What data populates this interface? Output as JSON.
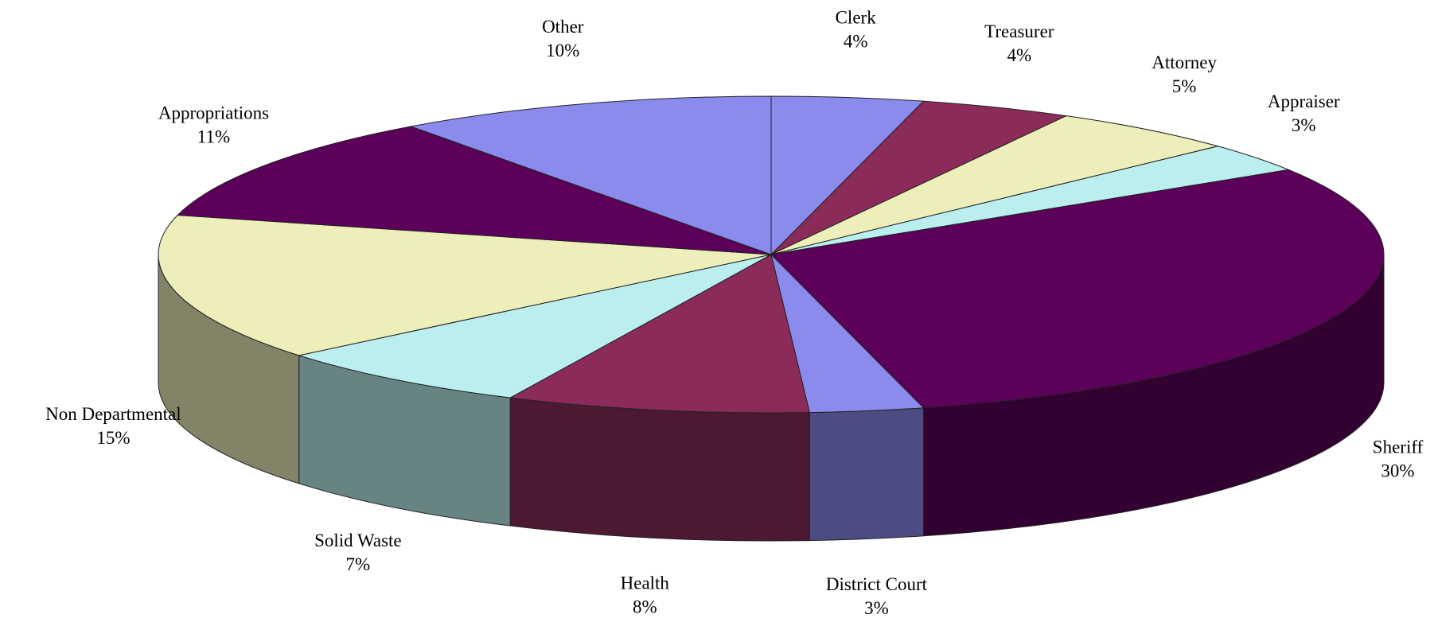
{
  "chart_data": {
    "type": "pie3d",
    "categories": [
      "Clerk",
      "Treasurer",
      "Attorney",
      "Appraiser",
      "Sheriff",
      "District Court",
      "Health",
      "Solid Waste",
      "Non Departmental",
      "Appropriations",
      "Other"
    ],
    "values": [
      4,
      4,
      5,
      3,
      30,
      3,
      8,
      7,
      15,
      11,
      10
    ],
    "value_labels": [
      "4%",
      "4%",
      "5%",
      "3%",
      "30%",
      "3%",
      "8%",
      "7%",
      "15%",
      "11%",
      "10%"
    ],
    "colors": [
      "#8b8bed",
      "#8b2b5a",
      "#eeeebb",
      "#bbeeee",
      "#5c005a",
      "#8b8bed",
      "#8b2b5a",
      "#bbeeee",
      "#eeeebb",
      "#5c005a",
      "#8b8bed"
    ]
  }
}
